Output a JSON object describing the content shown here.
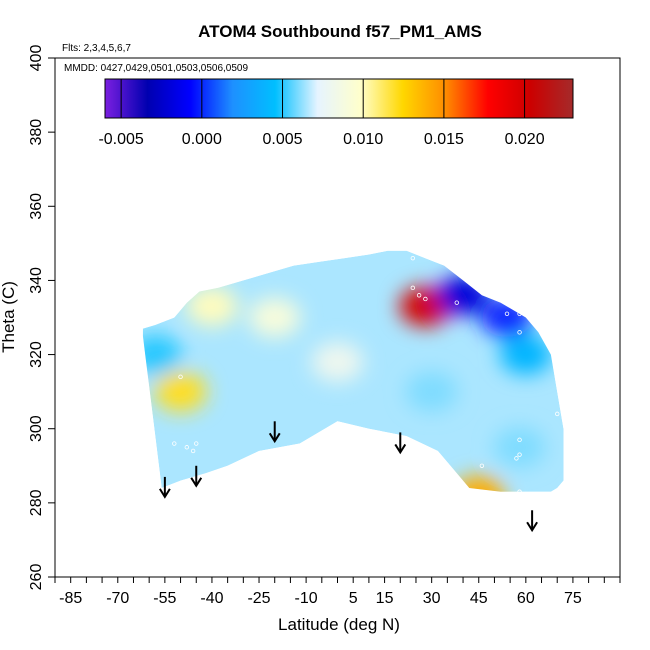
{
  "chart_data": {
    "type": "heatmap",
    "title": "ATOM4 Southbound f57_PM1_AMS",
    "flights_note": "Flts: 2,3,4,5,6,7",
    "dates_note": "MMDD: 0427,0429,0501,0503,0506,0509",
    "xlabel": "Latitude (deg N)",
    "ylabel": "Theta (C)",
    "xlim": [
      -90,
      90
    ],
    "ylim": [
      260,
      400
    ],
    "x_tick_labels": [
      "-85",
      "-70",
      "-55",
      "-40",
      "-25",
      "-10",
      "5",
      "15",
      "30",
      "45",
      "60",
      "75"
    ],
    "x_tick_values": [
      -85,
      -70,
      -55,
      -40,
      -25,
      -10,
      5,
      15,
      30,
      45,
      60,
      75
    ],
    "y_tick_labels": [
      "260",
      "280",
      "300",
      "320",
      "340",
      "360",
      "380",
      "400"
    ],
    "y_tick_values": [
      260,
      280,
      300,
      320,
      340,
      360,
      380,
      400
    ],
    "colorbar": {
      "min": -0.006,
      "max": 0.023,
      "tick_labels": [
        "-0.005",
        "0.000",
        "0.005",
        "0.010",
        "0.015",
        "0.020"
      ],
      "tick_values": [
        -0.005,
        0.0,
        0.005,
        0.01,
        0.015,
        0.02
      ],
      "colors": [
        "#7b1fe0",
        "#0000b0",
        "#0000ff",
        "#1e90ff",
        "#00bfff",
        "#e6f4ff",
        "#ffffcc",
        "#ffd700",
        "#ff8c00",
        "#ff0000",
        "#cc0000",
        "#a52a2a"
      ]
    },
    "data_envelope": {
      "lat": [
        -56,
        -50,
        -42,
        -35,
        -30,
        -25,
        -12,
        0,
        10,
        22,
        32,
        42,
        52,
        58,
        62,
        66,
        68,
        70,
        72,
        72,
        68,
        64,
        60,
        56,
        52,
        46,
        40,
        34,
        28,
        22,
        16,
        10,
        2,
        -6,
        -14,
        -22,
        -30,
        -38,
        -44,
        -48,
        -52,
        -58,
        -62,
        -62
      ],
      "theta": [
        284,
        286,
        288,
        290,
        292,
        294,
        296,
        302,
        300,
        298,
        294,
        284,
        283,
        283,
        283,
        283,
        283,
        284,
        286,
        300,
        320,
        326,
        330,
        332,
        334,
        336,
        340,
        344,
        346,
        348,
        348,
        347,
        346,
        345,
        344,
        342,
        340,
        338,
        337,
        334,
        330,
        328,
        327,
        325
      ]
    },
    "features": [
      {
        "lat": 28,
        "theta": 333,
        "value": 0.02
      },
      {
        "lat": -50,
        "theta": 310,
        "value": 0.012
      },
      {
        "lat": 45,
        "theta": 282,
        "value": 0.014
      },
      {
        "lat": -40,
        "theta": 333,
        "value": 0.01
      },
      {
        "lat": 40,
        "theta": 336,
        "value": -0.002
      },
      {
        "lat": 54,
        "theta": 330,
        "value": 0.0
      },
      {
        "lat": 60,
        "theta": 320,
        "value": 0.004
      },
      {
        "lat": -58,
        "theta": 320,
        "value": 0.005
      },
      {
        "lat": 0,
        "theta": 318,
        "value": 0.008
      },
      {
        "lat": 30,
        "theta": 310,
        "value": 0.006
      },
      {
        "lat": 58,
        "theta": 295,
        "value": 0.006
      },
      {
        "lat": -20,
        "theta": 330,
        "value": 0.009
      }
    ],
    "arrows": [
      {
        "lat": -55,
        "theta": 287
      },
      {
        "lat": -45,
        "theta": 290
      },
      {
        "lat": -20,
        "theta": 302
      },
      {
        "lat": 20,
        "theta": 299
      },
      {
        "lat": 62,
        "theta": 278
      }
    ],
    "sample_points": [
      {
        "lat": 24,
        "theta": 338
      },
      {
        "lat": 26,
        "theta": 336
      },
      {
        "lat": 28,
        "theta": 335
      },
      {
        "lat": 38,
        "theta": 334
      },
      {
        "lat": 54,
        "theta": 331
      },
      {
        "lat": 58,
        "theta": 331
      },
      {
        "lat": 60,
        "theta": 331
      },
      {
        "lat": 58,
        "theta": 326
      },
      {
        "lat": -50,
        "theta": 314
      },
      {
        "lat": -52,
        "theta": 296
      },
      {
        "lat": -48,
        "theta": 295
      },
      {
        "lat": -46,
        "theta": 294
      },
      {
        "lat": -45,
        "theta": 296
      },
      {
        "lat": 30,
        "theta": 292
      },
      {
        "lat": 46,
        "theta": 290
      },
      {
        "lat": 58,
        "theta": 297
      },
      {
        "lat": 58,
        "theta": 293
      },
      {
        "lat": 57,
        "theta": 292
      },
      {
        "lat": 58,
        "theta": 283
      },
      {
        "lat": 70,
        "theta": 304
      },
      {
        "lat": 44,
        "theta": 280
      },
      {
        "lat": 24,
        "theta": 346
      }
    ]
  }
}
